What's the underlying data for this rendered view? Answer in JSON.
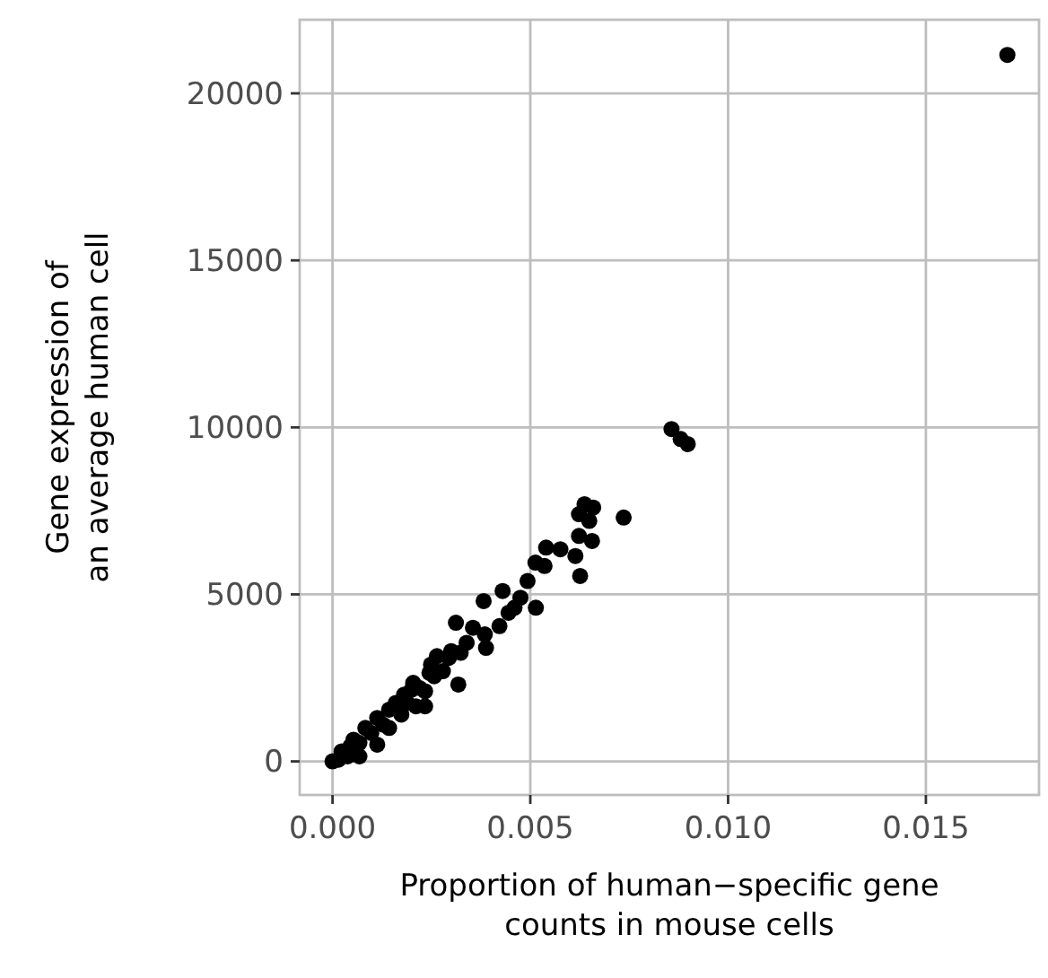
{
  "chart_data": {
    "type": "scatter",
    "xlabel": "Proportion of human−specific gene\ncounts in mouse cells",
    "ylabel": "Gene expression of\nan average human cell",
    "xlim": [
      -0.00083,
      0.01786
    ],
    "ylim": [
      -1005,
      22204
    ],
    "xticks": [
      {
        "value": 0,
        "label": "0.000"
      },
      {
        "value": 0.005,
        "label": "0.005"
      },
      {
        "value": 0.01,
        "label": "0.010"
      },
      {
        "value": 0.015,
        "label": "0.015"
      }
    ],
    "yticks": [
      0,
      5000,
      10000,
      15000,
      20000
    ],
    "grid": true,
    "marker": "circle",
    "series": [
      {
        "color": "#000000",
        "x": [
          0.01706,
          0.00857,
          0.0088,
          0.00898,
          0.00736,
          0.00637,
          0.00659,
          0.00623,
          0.00649,
          0.00623,
          0.00656,
          0.00614,
          0.00626,
          0.00576,
          0.0054,
          0.00513,
          0.00536,
          0.00493,
          0.00514,
          0.0043,
          0.00382,
          0.0046,
          0.00422,
          0.00312,
          0.00388,
          0.00318,
          0.00339,
          0.00264,
          0.00249,
          0.00294,
          0.00204,
          0.00234,
          0.00211,
          0.00181,
          0.00143,
          0.00113,
          0.00113,
          0.00083,
          0.00068,
          0.00053,
          0.00023,
          0,
          0.00015,
          0.00038,
          0.00143,
          0.00174,
          0.00234,
          0.00279,
          0.00324,
          0.00355,
          0.00385,
          0.00445,
          0.00475,
          0.00098,
          0.00128,
          0.00189,
          0.00219,
          0.00257,
          0.00068,
          0.00045,
          0.0016,
          0.002,
          0.00245,
          0.003
        ],
        "values": [
          21150,
          9950,
          9650,
          9500,
          7300,
          7700,
          7600,
          7400,
          7200,
          6750,
          6600,
          6150,
          5550,
          6350,
          6400,
          5950,
          5850,
          5400,
          4600,
          5100,
          4800,
          4600,
          4050,
          4150,
          3400,
          2300,
          3550,
          3150,
          2900,
          3100,
          2350,
          2100,
          1650,
          2000,
          1550,
          1300,
          500,
          1000,
          150,
          650,
          300,
          0,
          50,
          150,
          1000,
          1400,
          1650,
          2700,
          3250,
          4000,
          3800,
          4450,
          4900,
          850,
          1100,
          1750,
          2200,
          2550,
          550,
          450,
          1750,
          2150,
          2650,
          3300
        ]
      }
    ]
  }
}
